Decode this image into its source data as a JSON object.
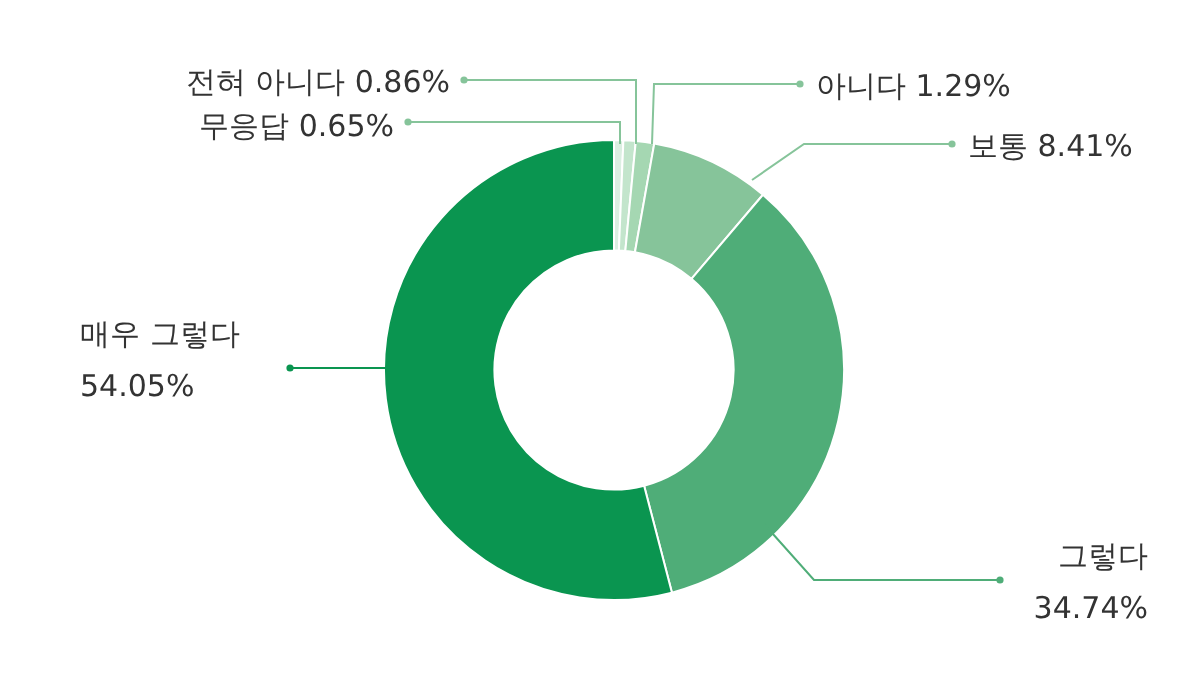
{
  "chart_data": {
    "type": "donut",
    "categories": [
      "무응답",
      "전혀 아니다",
      "아니다",
      "보통",
      "그렇다",
      "매우 그렇다"
    ],
    "values": [
      0.65,
      0.86,
      1.29,
      8.41,
      34.74,
      54.05
    ],
    "value_labels": [
      "0.65%",
      "0.86%",
      "1.29%",
      "8.41%",
      "34.74%",
      "54.05%"
    ],
    "colors": [
      "#dcefe2",
      "#c3e5cc",
      "#a5d7b2",
      "#86c49a",
      "#4fad78",
      "#0a9550"
    ]
  }
}
